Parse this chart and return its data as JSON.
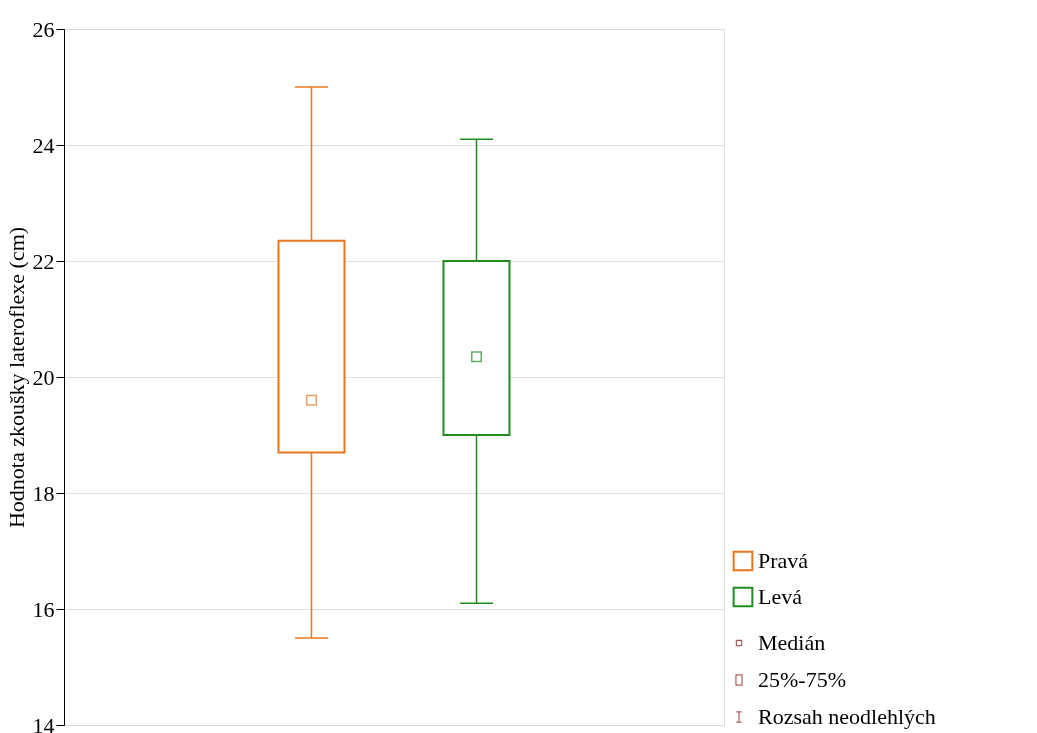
{
  "chart_data": {
    "type": "box",
    "ylabel": "Hodnota zkoušky lateroflexe (cm)",
    "categories": [
      null
    ],
    "series": [
      {
        "name": "Pravá",
        "color": "#e8761c",
        "boxes": [
          {
            "low": 15.5,
            "q1": 18.7,
            "median": 19.6,
            "q3": 22.35,
            "high": 25.0
          }
        ]
      },
      {
        "name": "Levá",
        "color": "#1e8c1e",
        "boxes": [
          {
            "low": 16.1,
            "q1": 19.0,
            "median": 20.35,
            "q3": 22.0,
            "high": 24.1
          }
        ]
      }
    ],
    "ylim": [
      14,
      26
    ],
    "yticks": [
      14,
      16,
      18,
      20,
      22,
      24,
      26
    ],
    "grid": "y",
    "legend": "bottom right",
    "marker": "square",
    "annotations": [
      "Medián",
      "25%-75%",
      "Rozsah neodlehlých"
    ]
  }
}
